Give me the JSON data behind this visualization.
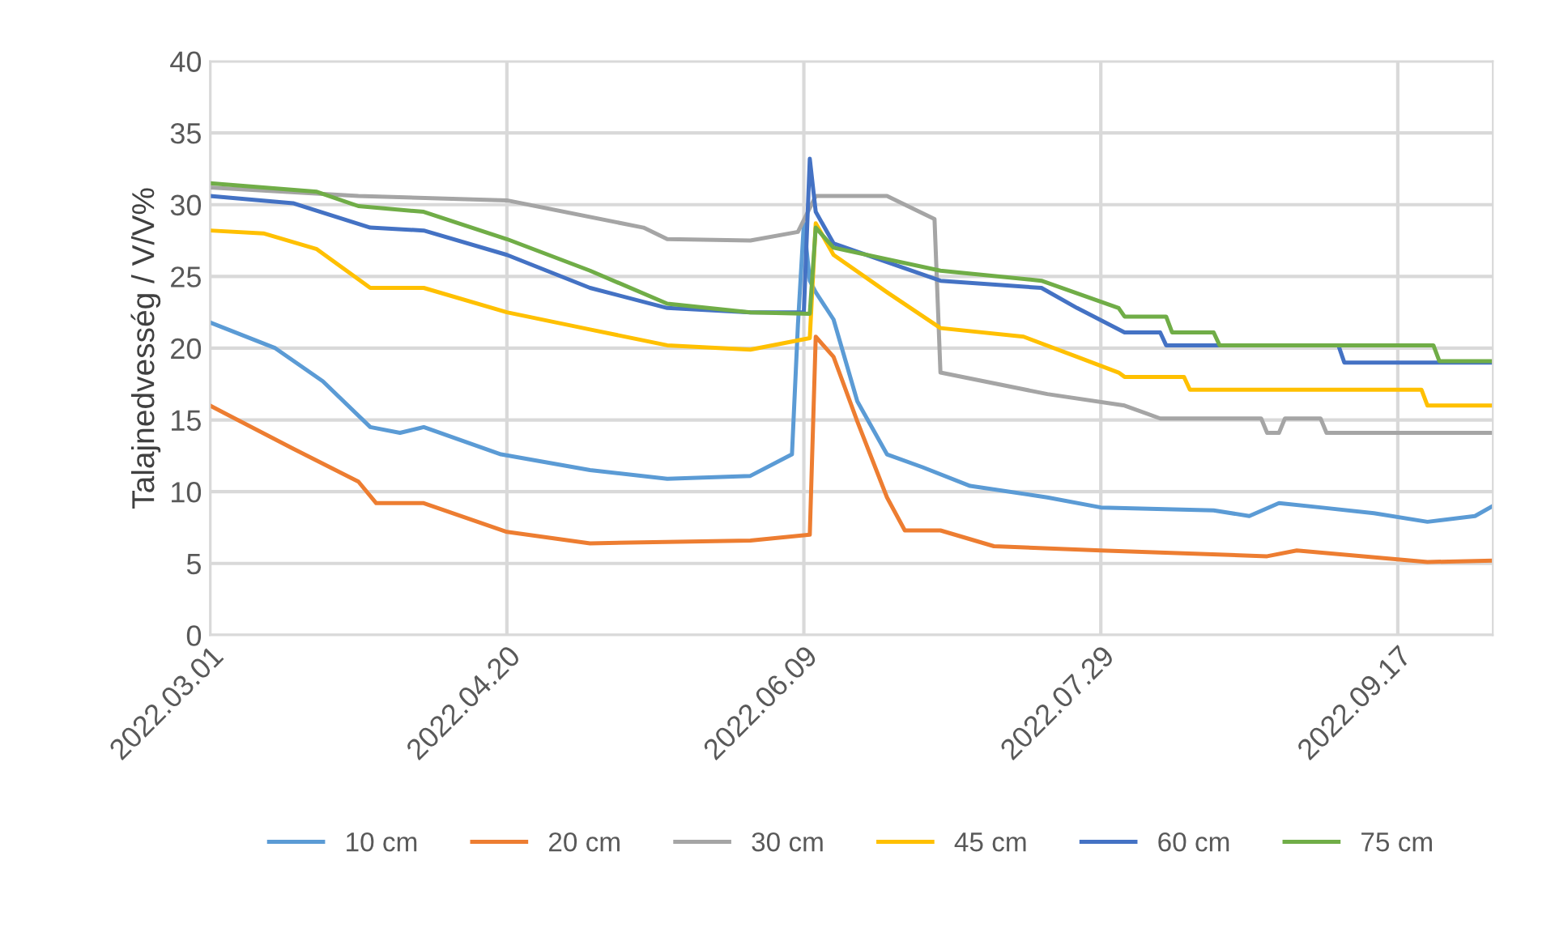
{
  "chart_data": {
    "type": "line",
    "ylabel": "Talajnedvesség / V/V%",
    "xlim": [
      "2022-03-01",
      "2022-10-03"
    ],
    "xticks": [
      {
        "value": "2022-03-01",
        "label": "2022.03.01"
      },
      {
        "value": "2022-04-20",
        "label": "2022.04.20"
      },
      {
        "value": "2022-06-09",
        "label": "2022.06.09"
      },
      {
        "value": "2022-07-29",
        "label": "2022.07.29"
      },
      {
        "value": "2022-09-17",
        "label": "2022.09.17"
      }
    ],
    "ylim": [
      0,
      40
    ],
    "yticks": [
      0,
      5,
      10,
      15,
      20,
      25,
      30,
      35,
      40
    ],
    "grid": true,
    "legend": "bottom",
    "marker": "none",
    "line_style": "solid",
    "series": [
      {
        "name": "10 cm",
        "color": "#5b9bd5",
        "x": [
          "2022-03-01",
          "2022-03-12",
          "2022-03-20",
          "2022-03-28",
          "2022-04-02",
          "2022-04-06",
          "2022-04-19",
          "2022-05-04",
          "2022-05-17",
          "2022-05-31",
          "2022-06-07",
          "2022-06-08",
          "2022-06-09",
          "2022-06-10",
          "2022-06-11",
          "2022-06-14",
          "2022-06-18",
          "2022-06-23",
          "2022-06-29",
          "2022-07-07",
          "2022-07-20",
          "2022-07-29",
          "2022-08-17",
          "2022-08-23",
          "2022-08-28",
          "2022-09-04",
          "2022-09-13",
          "2022-09-22",
          "2022-09-30",
          "2022-10-03"
        ],
        "values": [
          21.8,
          20.0,
          17.7,
          14.5,
          14.1,
          14.5,
          12.6,
          11.5,
          10.9,
          11.1,
          12.6,
          21.6,
          28.7,
          24.7,
          23.9,
          22.0,
          16.3,
          12.6,
          11.7,
          10.4,
          9.6,
          8.9,
          8.7,
          8.3,
          9.2,
          8.9,
          8.5,
          7.9,
          8.3,
          9.0
        ]
      },
      {
        "name": "20 cm",
        "color": "#ed7d31",
        "x": [
          "2022-03-01",
          "2022-03-15",
          "2022-03-26",
          "2022-03-29",
          "2022-04-06",
          "2022-04-20",
          "2022-05-04",
          "2022-05-31",
          "2022-06-10",
          "2022-06-11",
          "2022-06-14",
          "2022-06-18",
          "2022-06-23",
          "2022-06-26",
          "2022-07-02",
          "2022-07-11",
          "2022-07-29",
          "2022-08-26",
          "2022-08-31",
          "2022-09-22",
          "2022-10-03"
        ],
        "values": [
          16.0,
          13.0,
          10.7,
          9.2,
          9.2,
          7.2,
          6.4,
          6.6,
          7.0,
          20.8,
          19.4,
          14.9,
          9.6,
          7.3,
          7.3,
          6.2,
          5.9,
          5.5,
          5.9,
          5.1,
          5.2
        ]
      },
      {
        "name": "30 cm",
        "color": "#a5a5a5",
        "x": [
          "2022-03-01",
          "2022-03-26",
          "2022-04-20",
          "2022-05-13",
          "2022-05-17",
          "2022-05-31",
          "2022-06-08",
          "2022-06-11",
          "2022-06-23",
          "2022-07-01",
          "2022-07-02",
          "2022-07-20",
          "2022-08-02",
          "2022-08-08",
          "2022-08-25",
          "2022-08-26",
          "2022-08-28",
          "2022-08-29",
          "2022-09-04",
          "2022-09-05",
          "2022-10-03"
        ],
        "values": [
          31.2,
          30.6,
          30.3,
          28.4,
          27.6,
          27.5,
          28.1,
          30.6,
          30.6,
          29.0,
          18.3,
          16.8,
          16.0,
          15.1,
          15.1,
          14.1,
          14.1,
          15.1,
          15.1,
          14.1,
          14.1
        ]
      },
      {
        "name": "45 cm",
        "color": "#ffc000",
        "x": [
          "2022-03-01",
          "2022-03-10",
          "2022-03-19",
          "2022-03-28",
          "2022-04-06",
          "2022-04-20",
          "2022-05-04",
          "2022-05-17",
          "2022-05-31",
          "2022-06-10",
          "2022-06-11",
          "2022-06-14",
          "2022-06-23",
          "2022-07-02",
          "2022-07-16",
          "2022-07-25",
          "2022-08-01",
          "2022-08-02",
          "2022-08-12",
          "2022-08-13",
          "2022-09-21",
          "2022-09-22",
          "2022-10-03"
        ],
        "values": [
          28.2,
          28.0,
          26.9,
          24.2,
          24.2,
          22.5,
          21.3,
          20.2,
          19.9,
          20.7,
          28.7,
          26.5,
          23.9,
          21.4,
          20.8,
          19.4,
          18.3,
          18.0,
          18.0,
          17.1,
          17.1,
          16.0,
          16.0
        ]
      },
      {
        "name": "60 cm",
        "color": "#4472c4",
        "x": [
          "2022-03-01",
          "2022-03-15",
          "2022-03-28",
          "2022-04-06",
          "2022-04-20",
          "2022-05-04",
          "2022-05-17",
          "2022-05-31",
          "2022-06-09",
          "2022-06-10",
          "2022-06-11",
          "2022-06-14",
          "2022-07-02",
          "2022-07-19",
          "2022-07-25",
          "2022-08-02",
          "2022-08-08",
          "2022-08-09",
          "2022-09-07",
          "2022-09-08",
          "2022-10-03"
        ],
        "values": [
          30.6,
          30.1,
          28.4,
          28.2,
          26.5,
          24.2,
          22.8,
          22.5,
          22.5,
          33.2,
          29.5,
          27.3,
          24.7,
          24.2,
          22.8,
          21.1,
          21.1,
          20.2,
          20.2,
          19.0,
          19.0
        ]
      },
      {
        "name": "75 cm",
        "color": "#70ad47",
        "x": [
          "2022-03-01",
          "2022-03-19",
          "2022-03-26",
          "2022-04-06",
          "2022-04-20",
          "2022-05-04",
          "2022-05-17",
          "2022-05-31",
          "2022-06-10",
          "2022-06-11",
          "2022-06-14",
          "2022-07-02",
          "2022-07-19",
          "2022-08-01",
          "2022-08-02",
          "2022-08-09",
          "2022-08-10",
          "2022-08-17",
          "2022-08-18",
          "2022-09-23",
          "2022-09-24",
          "2022-10-03"
        ],
        "values": [
          31.5,
          30.9,
          29.9,
          29.5,
          27.6,
          25.4,
          23.1,
          22.5,
          22.4,
          28.4,
          27.0,
          25.4,
          24.7,
          22.8,
          22.2,
          22.2,
          21.1,
          21.1,
          20.2,
          20.2,
          19.1,
          19.1
        ]
      }
    ]
  }
}
